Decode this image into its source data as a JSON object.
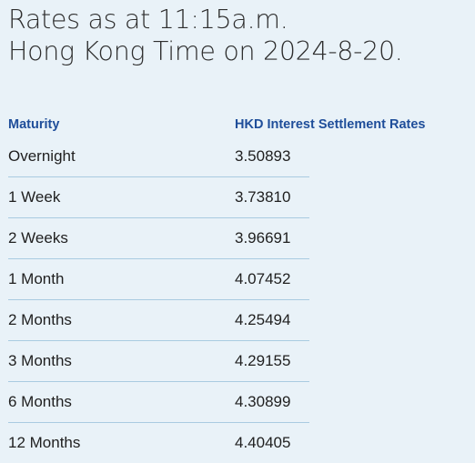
{
  "heading": {
    "line1": "Rates as at 11:15a.m.",
    "line2": "Hong Kong Time on 2024-8-20."
  },
  "table": {
    "headers": {
      "maturity": "Maturity",
      "rate": "HKD Interest Settlement Rates"
    },
    "rows": [
      {
        "maturity": "Overnight",
        "rate": "3.50893"
      },
      {
        "maturity": "1 Week",
        "rate": "3.73810"
      },
      {
        "maturity": "2 Weeks",
        "rate": "3.96691"
      },
      {
        "maturity": "1 Month",
        "rate": "4.07452"
      },
      {
        "maturity": "2 Months",
        "rate": "4.25494"
      },
      {
        "maturity": "3 Months",
        "rate": "4.29155"
      },
      {
        "maturity": "6 Months",
        "rate": "4.30899"
      },
      {
        "maturity": "12 Months",
        "rate": "4.40405"
      }
    ]
  },
  "colors": {
    "background": "#e9f2f8",
    "header_text": "#1f4e9a",
    "row_divider": "#a9cbe1"
  }
}
